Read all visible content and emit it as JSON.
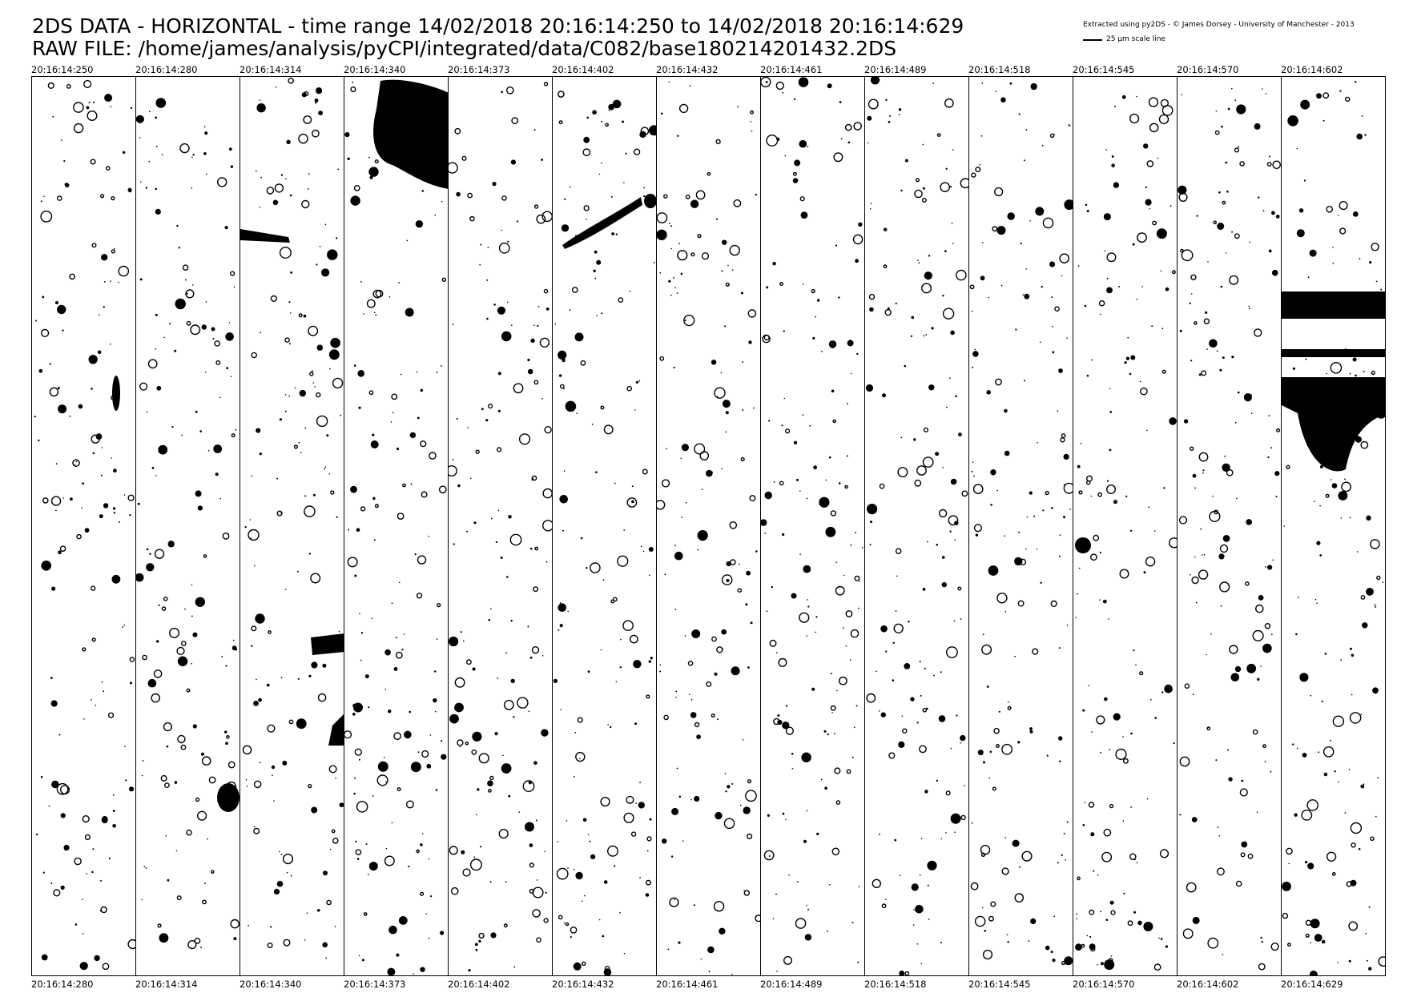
{
  "header": {
    "title_line1": "2DS DATA - HORIZONTAL - time range 14/02/2018 20:16:14:250 to 14/02/2018 20:16:14:629",
    "title_line2": "RAW FILE: /home/james/analysis/pyCPI/integrated/data/C082/base180214201432.2DS",
    "credit": "Extracted using py2DS - © James Dorsey - University of Manchester - 2013",
    "scale_label": "25 μm scale line"
  },
  "strips": [
    {
      "start": "20:16:14:250",
      "end": "20:16:14:280"
    },
    {
      "start": "20:16:14:280",
      "end": "20:16:14:314"
    },
    {
      "start": "20:16:14:314",
      "end": "20:16:14:340"
    },
    {
      "start": "20:16:14:340",
      "end": "20:16:14:373"
    },
    {
      "start": "20:16:14:373",
      "end": "20:16:14:402"
    },
    {
      "start": "20:16:14:402",
      "end": "20:16:14:432"
    },
    {
      "start": "20:16:14:432",
      "end": "20:16:14:461"
    },
    {
      "start": "20:16:14:461",
      "end": "20:16:14:489"
    },
    {
      "start": "20:16:14:489",
      "end": "20:16:14:518"
    },
    {
      "start": "20:16:14:518",
      "end": "20:16:14:545"
    },
    {
      "start": "20:16:14:545",
      "end": "20:16:14:570"
    },
    {
      "start": "20:16:14:570",
      "end": "20:16:14:602"
    },
    {
      "start": "20:16:14:602",
      "end": "20:16:14:629"
    }
  ]
}
